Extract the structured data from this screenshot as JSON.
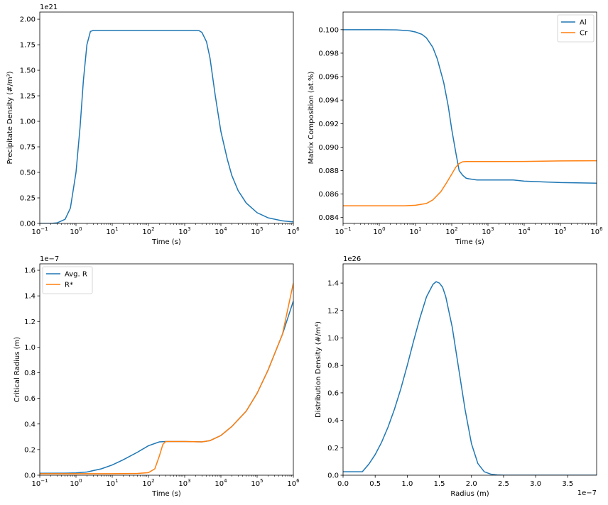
{
  "colors": {
    "blue": "#1f77b4",
    "orange": "#ff7f0e"
  },
  "chart_data": [
    {
      "type": "line",
      "xlabel": "Time (s)",
      "ylabel": "Precipitate Density (#/m³)",
      "xscale": "log",
      "xlim": [
        0.1,
        1000000
      ],
      "ylim": [
        0,
        2.07e+21
      ],
      "offset_text": "1e21",
      "xticks": [
        {
          "v": 0.1,
          "base": "10",
          "exp": "−1"
        },
        {
          "v": 1,
          "base": "10",
          "exp": "0"
        },
        {
          "v": 10,
          "base": "10",
          "exp": "1"
        },
        {
          "v": 100,
          "base": "10",
          "exp": "2"
        },
        {
          "v": 1000,
          "base": "10",
          "exp": "3"
        },
        {
          "v": 10000,
          "base": "10",
          "exp": "4"
        },
        {
          "v": 100000,
          "base": "10",
          "exp": "5"
        },
        {
          "v": 1000000,
          "base": "10",
          "exp": "6"
        }
      ],
      "yticks": [
        {
          "v": 0,
          "label": "0.00"
        },
        {
          "v": 2.5e+20,
          "label": "0.25"
        },
        {
          "v": 5e+20,
          "label": "0.50"
        },
        {
          "v": 7.5e+20,
          "label": "0.75"
        },
        {
          "v": 1e+21,
          "label": "1.00"
        },
        {
          "v": 1.25e+21,
          "label": "1.25"
        },
        {
          "v": 1.5e+21,
          "label": "1.50"
        },
        {
          "v": 1.75e+21,
          "label": "1.75"
        },
        {
          "v": 2e+21,
          "label": "2.00"
        }
      ],
      "legend": null,
      "series": [
        {
          "color": "blue",
          "x": [
            0.1,
            0.2,
            0.3,
            0.5,
            0.7,
            1,
            1.3,
            1.6,
            2,
            2.5,
            3,
            10,
            100,
            1000,
            2000,
            2500,
            3000,
            4000,
            5000,
            7000,
            10000,
            15000,
            20000,
            30000,
            50000,
            100000,
            200000,
            500000,
            1000000
          ],
          "y": [
            0,
            0,
            5e+18,
            4e+19,
            1.5e+20,
            5e+20,
            9.5e+20,
            1.4e+21,
            1.75e+21,
            1.88e+21,
            1.89e+21,
            1.89e+21,
            1.89e+21,
            1.89e+21,
            1.89e+21,
            1.888e+21,
            1.87e+21,
            1.78e+21,
            1.62e+21,
            1.25e+21,
            9e+20,
            6.3e+20,
            4.7e+20,
            3.2e+20,
            2e+20,
            1.05e+20,
            5.5e+19,
            2.5e+19,
            1.5e+19
          ]
        }
      ]
    },
    {
      "type": "line",
      "xlabel": "Time (s)",
      "ylabel": "Matrix Composition (at.%)",
      "xscale": "log",
      "xlim": [
        0.1,
        1000000
      ],
      "ylim": [
        0.0835,
        0.1015
      ],
      "offset_text": "",
      "xticks": [
        {
          "v": 0.1,
          "base": "10",
          "exp": "−1"
        },
        {
          "v": 1,
          "base": "10",
          "exp": "0"
        },
        {
          "v": 10,
          "base": "10",
          "exp": "1"
        },
        {
          "v": 100,
          "base": "10",
          "exp": "2"
        },
        {
          "v": 1000,
          "base": "10",
          "exp": "3"
        },
        {
          "v": 10000,
          "base": "10",
          "exp": "4"
        },
        {
          "v": 100000,
          "base": "10",
          "exp": "5"
        },
        {
          "v": 1000000,
          "base": "10",
          "exp": "6"
        }
      ],
      "yticks": [
        {
          "v": 0.084,
          "label": "0.084"
        },
        {
          "v": 0.086,
          "label": "0.086"
        },
        {
          "v": 0.088,
          "label": "0.088"
        },
        {
          "v": 0.09,
          "label": "0.090"
        },
        {
          "v": 0.092,
          "label": "0.092"
        },
        {
          "v": 0.094,
          "label": "0.094"
        },
        {
          "v": 0.096,
          "label": "0.096"
        },
        {
          "v": 0.098,
          "label": "0.098"
        },
        {
          "v": 0.1,
          "label": "0.100"
        }
      ],
      "legend": "top-right",
      "series": [
        {
          "name": "Al",
          "color": "blue",
          "x": [
            0.1,
            1,
            3,
            7,
            10,
            15,
            20,
            30,
            40,
            60,
            80,
            100,
            130,
            160,
            200,
            250,
            300,
            500,
            1000,
            5000,
            10000,
            100000,
            1000000
          ],
          "y": [
            0.1,
            0.1,
            0.09998,
            0.0999,
            0.0998,
            0.0996,
            0.0993,
            0.0985,
            0.0975,
            0.0955,
            0.0935,
            0.0915,
            0.0895,
            0.088,
            0.0876,
            0.08735,
            0.0873,
            0.0872,
            0.0872,
            0.0872,
            0.0871,
            0.08698,
            0.08693
          ]
        },
        {
          "name": "Cr",
          "color": "orange",
          "x": [
            0.1,
            1,
            5,
            10,
            20,
            30,
            50,
            70,
            100,
            130,
            160,
            200,
            250,
            300,
            1000,
            10000,
            100000,
            1000000
          ],
          "y": [
            0.085,
            0.085,
            0.085,
            0.08505,
            0.0852,
            0.0855,
            0.0862,
            0.0869,
            0.0877,
            0.0883,
            0.0886,
            0.08875,
            0.08877,
            0.08877,
            0.08877,
            0.08878,
            0.08882,
            0.08884
          ]
        }
      ]
    },
    {
      "type": "line",
      "xlabel": "Time (s)",
      "ylabel": "Critical Radius (m)",
      "xscale": "log",
      "xlim": [
        0.1,
        1000000
      ],
      "ylim": [
        0,
        1.65e-07
      ],
      "offset_text": "1e−7",
      "xticks": [
        {
          "v": 0.1,
          "base": "10",
          "exp": "−1"
        },
        {
          "v": 1,
          "base": "10",
          "exp": "0"
        },
        {
          "v": 10,
          "base": "10",
          "exp": "1"
        },
        {
          "v": 100,
          "base": "10",
          "exp": "2"
        },
        {
          "v": 1000,
          "base": "10",
          "exp": "3"
        },
        {
          "v": 10000,
          "base": "10",
          "exp": "4"
        },
        {
          "v": 100000,
          "base": "10",
          "exp": "5"
        },
        {
          "v": 1000000,
          "base": "10",
          "exp": "6"
        }
      ],
      "yticks": [
        {
          "v": 0,
          "label": "0.0"
        },
        {
          "v": 2e-08,
          "label": "0.2"
        },
        {
          "v": 4e-08,
          "label": "0.4"
        },
        {
          "v": 6e-08,
          "label": "0.6"
        },
        {
          "v": 8e-08,
          "label": "0.8"
        },
        {
          "v": 1e-07,
          "label": "1.0"
        },
        {
          "v": 1.2e-07,
          "label": "1.2"
        },
        {
          "v": 1.4e-07,
          "label": "1.4"
        },
        {
          "v": 1.6e-07,
          "label": "1.6"
        }
      ],
      "legend": "top-left",
      "series": [
        {
          "name": "Avg. R",
          "color": "blue",
          "x": [
            0.1,
            0.5,
            1,
            2,
            5,
            10,
            20,
            50,
            100,
            200,
            300,
            1000,
            3000,
            5000,
            10000,
            20000,
            50000,
            100000,
            200000,
            500000,
            1000000
          ],
          "y": [
            1.5e-09,
            1.6e-09,
            1.8e-09,
            2.5e-09,
            5e-09,
            8e-09,
            1.2e-08,
            1.8e-08,
            2.3e-08,
            2.6e-08,
            2.63e-08,
            2.63e-08,
            2.6e-08,
            2.7e-08,
            3.1e-08,
            3.8e-08,
            5e-08,
            6.4e-08,
            8.2e-08,
            1.1e-07,
            1.36e-07
          ]
        },
        {
          "name": "R*",
          "color": "orange",
          "x": [
            0.1,
            1,
            10,
            50,
            100,
            150,
            200,
            250,
            300,
            1000,
            3000,
            5000,
            10000,
            20000,
            50000,
            100000,
            200000,
            500000,
            1000000
          ],
          "y": [
            1.2e-09,
            1.2e-09,
            1.2e-09,
            1.4e-09,
            2e-09,
            5e-09,
            1.5e-08,
            2.4e-08,
            2.63e-08,
            2.63e-08,
            2.6e-08,
            2.7e-08,
            3.1e-08,
            3.8e-08,
            5e-08,
            6.4e-08,
            8.2e-08,
            1.1e-07,
            1.5e-07
          ]
        }
      ]
    },
    {
      "type": "line",
      "xlabel": "Radius (m)",
      "ylabel": "Distribution Density (#/m⁴)",
      "xscale": "linear",
      "xlim": [
        0,
        3.95e-07
      ],
      "ylim": [
        0,
        1.54e+26
      ],
      "offset_text": "1e26",
      "x_offset_text": "1e−7",
      "xticks": [
        {
          "v": 0,
          "label": "0.0"
        },
        {
          "v": 5e-08,
          "label": "0.5"
        },
        {
          "v": 1e-07,
          "label": "1.0"
        },
        {
          "v": 1.5e-07,
          "label": "1.5"
        },
        {
          "v": 2e-07,
          "label": "2.0"
        },
        {
          "v": 2.5e-07,
          "label": "2.5"
        },
        {
          "v": 3e-07,
          "label": "3.0"
        },
        {
          "v": 3.5e-07,
          "label": "3.5"
        }
      ],
      "yticks": [
        {
          "v": 0,
          "label": "0.0"
        },
        {
          "v": 2e+25,
          "label": "0.2"
        },
        {
          "v": 4e+25,
          "label": "0.4"
        },
        {
          "v": 6e+25,
          "label": "0.6"
        },
        {
          "v": 8e+25,
          "label": "0.8"
        },
        {
          "v": 1e+26,
          "label": "1.0"
        },
        {
          "v": 1.2e+26,
          "label": "1.2"
        },
        {
          "v": 1.4e+26,
          "label": "1.4"
        }
      ],
      "legend": null,
      "series": [
        {
          "color": "blue",
          "x": [
            0,
            3e-08,
            4e-08,
            5e-08,
            6e-08,
            7e-08,
            8e-08,
            9e-08,
            1e-07,
            1.1e-07,
            1.2e-07,
            1.3e-07,
            1.4e-07,
            1.45e-07,
            1.5e-07,
            1.55e-07,
            1.6e-07,
            1.7e-07,
            1.8e-07,
            1.9e-07,
            2e-07,
            2.1e-07,
            2.2e-07,
            2.3e-07,
            2.4e-07,
            2.5e-07,
            3e-07,
            3.95e-07
          ],
          "y": [
            2.5e+24,
            2.5e+24,
            8e+24,
            1.5e+25,
            2.4e+25,
            3.5e+25,
            4.8e+25,
            6.3e+25,
            8e+25,
            9.8e+25,
            1.15e+26,
            1.3e+26,
            1.39e+26,
            1.41e+26,
            1.4e+26,
            1.37e+26,
            1.3e+26,
            1.08e+26,
            7.8e+25,
            4.8e+25,
            2.3e+25,
            8.5e+24,
            2.5e+24,
            8e+23,
            2e+23,
            0,
            0,
            0
          ]
        }
      ]
    }
  ]
}
